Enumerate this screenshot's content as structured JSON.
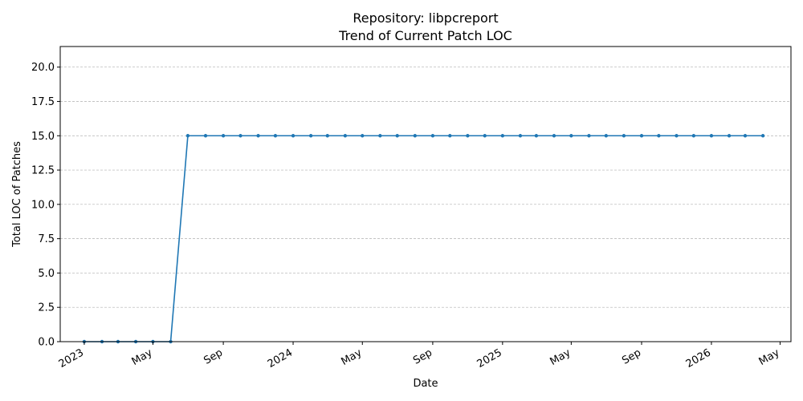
{
  "chart_data": {
    "type": "line",
    "title_line1": "Repository: libpcreport",
    "title_line2": "Trend of Current Patch LOC",
    "xlabel": "Date",
    "ylabel": "Total LOC of Patches",
    "xlim": [
      "2022-11-20",
      "2026-05-20"
    ],
    "ylim": [
      0,
      21.5
    ],
    "y_ticks": [
      0.0,
      2.5,
      5.0,
      7.5,
      10.0,
      12.5,
      15.0,
      17.5,
      20.0
    ],
    "y_tick_labels": [
      "0.0",
      "2.5",
      "5.0",
      "7.5",
      "10.0",
      "12.5",
      "15.0",
      "17.5",
      "20.0"
    ],
    "x_ticks": [
      {
        "date": "2023-01-01",
        "label": "2023"
      },
      {
        "date": "2023-05-01",
        "label": "May"
      },
      {
        "date": "2023-09-01",
        "label": "Sep"
      },
      {
        "date": "2024-01-01",
        "label": "2024"
      },
      {
        "date": "2024-05-01",
        "label": "May"
      },
      {
        "date": "2024-09-01",
        "label": "Sep"
      },
      {
        "date": "2025-01-01",
        "label": "2025"
      },
      {
        "date": "2025-05-01",
        "label": "May"
      },
      {
        "date": "2025-09-01",
        "label": "Sep"
      },
      {
        "date": "2026-01-01",
        "label": "2026"
      },
      {
        "date": "2026-05-01",
        "label": "May"
      }
    ],
    "grid": "horizontal-dashed",
    "series": [
      {
        "color": "#1f77b4",
        "points": [
          {
            "x": "2023-01-01",
            "y": 0
          },
          {
            "x": "2023-02-01",
            "y": 0
          },
          {
            "x": "2023-03-01",
            "y": 0
          },
          {
            "x": "2023-04-01",
            "y": 0
          },
          {
            "x": "2023-05-01",
            "y": 0
          },
          {
            "x": "2023-06-01",
            "y": 0
          },
          {
            "x": "2023-07-01",
            "y": 15
          },
          {
            "x": "2023-08-01",
            "y": 15
          },
          {
            "x": "2023-09-01",
            "y": 15
          },
          {
            "x": "2023-10-01",
            "y": 15
          },
          {
            "x": "2023-11-01",
            "y": 15
          },
          {
            "x": "2023-12-01",
            "y": 15
          },
          {
            "x": "2024-01-01",
            "y": 15
          },
          {
            "x": "2024-02-01",
            "y": 15
          },
          {
            "x": "2024-03-01",
            "y": 15
          },
          {
            "x": "2024-04-01",
            "y": 15
          },
          {
            "x": "2024-05-01",
            "y": 15
          },
          {
            "x": "2024-06-01",
            "y": 15
          },
          {
            "x": "2024-07-01",
            "y": 15
          },
          {
            "x": "2024-08-01",
            "y": 15
          },
          {
            "x": "2024-09-01",
            "y": 15
          },
          {
            "x": "2024-10-01",
            "y": 15
          },
          {
            "x": "2024-11-01",
            "y": 15
          },
          {
            "x": "2024-12-01",
            "y": 15
          },
          {
            "x": "2025-01-01",
            "y": 15
          },
          {
            "x": "2025-02-01",
            "y": 15
          },
          {
            "x": "2025-03-01",
            "y": 15
          },
          {
            "x": "2025-04-01",
            "y": 15
          },
          {
            "x": "2025-05-01",
            "y": 15
          },
          {
            "x": "2025-06-01",
            "y": 15
          },
          {
            "x": "2025-07-01",
            "y": 15
          },
          {
            "x": "2025-08-01",
            "y": 15
          },
          {
            "x": "2025-09-01",
            "y": 15
          },
          {
            "x": "2025-10-01",
            "y": 15
          },
          {
            "x": "2025-11-01",
            "y": 15
          },
          {
            "x": "2025-12-01",
            "y": 15
          },
          {
            "x": "2026-01-01",
            "y": 15
          },
          {
            "x": "2026-02-01",
            "y": 15
          },
          {
            "x": "2026-03-01",
            "y": 15
          },
          {
            "x": "2026-04-01",
            "y": 15
          }
        ]
      }
    ]
  }
}
